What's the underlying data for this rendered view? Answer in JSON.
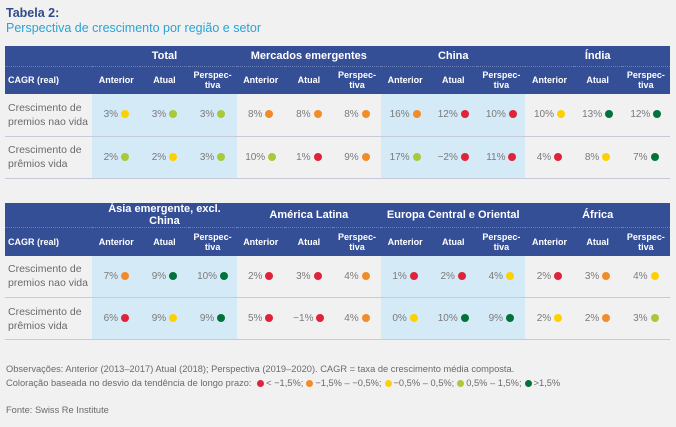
{
  "title": "Tabela 2:",
  "subtitle": "Perspectiva de crescimento por região e setor",
  "colors": {
    "header_bg": "#354f96",
    "highlight_bg": "#d4eaf7",
    "red": "#e0233a",
    "orange": "#f28c28",
    "yellow": "#fdd100",
    "lime": "#a8c93a",
    "green": "#00723a"
  },
  "tables": [
    {
      "row_header": "CAGR (real)",
      "groups": [
        "Total",
        "Mercados emergentes",
        "China",
        "Índia"
      ],
      "subcolumns": [
        "Anterior",
        "Atual",
        "Perspec-tiva"
      ],
      "rows": [
        {
          "label": "Crescimento de premios nao vida",
          "cells": [
            {
              "v": "3%",
              "c": "yellow"
            },
            {
              "v": "3%",
              "c": "lime"
            },
            {
              "v": "3%",
              "c": "lime"
            },
            {
              "v": "8%",
              "c": "orange"
            },
            {
              "v": "8%",
              "c": "orange"
            },
            {
              "v": "8%",
              "c": "orange"
            },
            {
              "v": "16%",
              "c": "orange"
            },
            {
              "v": "12%",
              "c": "red"
            },
            {
              "v": "10%",
              "c": "red"
            },
            {
              "v": "10%",
              "c": "yellow"
            },
            {
              "v": "13%",
              "c": "green"
            },
            {
              "v": "12%",
              "c": "green"
            }
          ]
        },
        {
          "label": "Crescimento de prêmios vida",
          "cells": [
            {
              "v": "2%",
              "c": "lime"
            },
            {
              "v": "2%",
              "c": "yellow"
            },
            {
              "v": "3%",
              "c": "lime"
            },
            {
              "v": "10%",
              "c": "lime"
            },
            {
              "v": "1%",
              "c": "red"
            },
            {
              "v": "9%",
              "c": "orange"
            },
            {
              "v": "17%",
              "c": "lime"
            },
            {
              "v": "−2%",
              "c": "red"
            },
            {
              "v": "11%",
              "c": "red"
            },
            {
              "v": "4%",
              "c": "red"
            },
            {
              "v": "8%",
              "c": "yellow"
            },
            {
              "v": "7%",
              "c": "green"
            }
          ]
        }
      ]
    },
    {
      "row_header": "CAGR (real)",
      "groups": [
        "Ásia emergente, excl. China",
        "América Latina",
        "Europa Central e Oriental",
        "África"
      ],
      "subcolumns": [
        "Anterior",
        "Atual",
        "Perspec-tiva"
      ],
      "rows": [
        {
          "label": "Crescimento de premios nao vida",
          "cells": [
            {
              "v": "7%",
              "c": "orange"
            },
            {
              "v": "9%",
              "c": "green"
            },
            {
              "v": "10%",
              "c": "green"
            },
            {
              "v": "2%",
              "c": "red"
            },
            {
              "v": "3%",
              "c": "red"
            },
            {
              "v": "4%",
              "c": "orange"
            },
            {
              "v": "1%",
              "c": "red"
            },
            {
              "v": "2%",
              "c": "red"
            },
            {
              "v": "4%",
              "c": "yellow"
            },
            {
              "v": "2%",
              "c": "red"
            },
            {
              "v": "3%",
              "c": "orange"
            },
            {
              "v": "4%",
              "c": "yellow"
            }
          ]
        },
        {
          "label": "Crescimento de prêmios vida",
          "cells": [
            {
              "v": "6%",
              "c": "red"
            },
            {
              "v": "9%",
              "c": "yellow"
            },
            {
              "v": "9%",
              "c": "green"
            },
            {
              "v": "5%",
              "c": "red"
            },
            {
              "v": "−1%",
              "c": "red"
            },
            {
              "v": "4%",
              "c": "orange"
            },
            {
              "v": "0%",
              "c": "yellow"
            },
            {
              "v": "10%",
              "c": "green"
            },
            {
              "v": "9%",
              "c": "green"
            },
            {
              "v": "2%",
              "c": "yellow"
            },
            {
              "v": "2%",
              "c": "orange"
            },
            {
              "v": "3%",
              "c": "lime"
            }
          ]
        }
      ]
    }
  ],
  "notes": {
    "line1": "Observações: Anterior (2013–2017) Atual (2018); Perspectiva (2019–2020). CAGR = taxa de crescimento média composta.",
    "legend_prefix": "Coloração baseada no desvio da tendência de longo prazo:",
    "legend": [
      {
        "c": "red",
        "label": "< −1,5%;"
      },
      {
        "c": "orange",
        "label": "−1,5% – −0,5%;"
      },
      {
        "c": "yellow",
        "label": "−0,5% – 0,5%;"
      },
      {
        "c": "lime",
        "label": "0,5% – 1,5%;"
      },
      {
        "c": "green",
        "label": ">1,5%"
      }
    ]
  },
  "source": "Fonte: Swiss Re Institute"
}
